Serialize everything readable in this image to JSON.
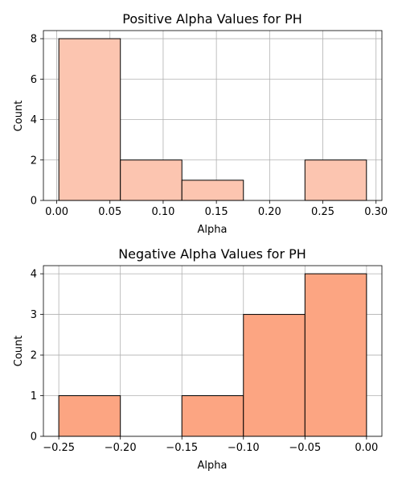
{
  "chart_data": [
    {
      "type": "bar",
      "title": "Positive Alpha Values for PH",
      "xlabel": "Alpha",
      "ylabel": "Count",
      "bins": [
        {
          "start": 0.002,
          "end": 0.0598,
          "count": 8
        },
        {
          "start": 0.0598,
          "end": 0.1176,
          "count": 2
        },
        {
          "start": 0.1176,
          "end": 0.1754,
          "count": 1
        },
        {
          "start": 0.1754,
          "end": 0.2332,
          "count": 0
        },
        {
          "start": 0.2332,
          "end": 0.291,
          "count": 2
        }
      ],
      "xlim": [
        -0.0125,
        0.3055
      ],
      "ylim": [
        0,
        8.4
      ],
      "xticks": [
        0.0,
        0.05,
        0.1,
        0.15,
        0.2,
        0.25,
        0.3
      ],
      "xtick_labels": [
        "0.00",
        "0.05",
        "0.10",
        "0.15",
        "0.20",
        "0.25",
        "0.30"
      ],
      "yticks": [
        0,
        2,
        4,
        6,
        8
      ],
      "ytick_labels": [
        "0",
        "2",
        "4",
        "6",
        "8"
      ],
      "grid": true,
      "bar_color": "#fcc5b0",
      "edge_color": "#000000"
    },
    {
      "type": "bar",
      "title": "Negative Alpha Values for PH",
      "xlabel": "Alpha",
      "ylabel": "Count",
      "bins": [
        {
          "start": -0.25,
          "end": -0.2,
          "count": 1
        },
        {
          "start": -0.2,
          "end": -0.15,
          "count": 0
        },
        {
          "start": -0.15,
          "end": -0.1,
          "count": 1
        },
        {
          "start": -0.1,
          "end": -0.05,
          "count": 3
        },
        {
          "start": -0.05,
          "end": 0.0,
          "count": 4
        }
      ],
      "xlim": [
        -0.2625,
        0.0125
      ],
      "ylim": [
        0,
        4.2
      ],
      "xticks": [
        -0.25,
        -0.2,
        -0.15,
        -0.1,
        -0.05,
        0.0
      ],
      "xtick_labels": [
        "−0.25",
        "−0.20",
        "−0.15",
        "−0.10",
        "−0.05",
        "0.00"
      ],
      "yticks": [
        0,
        1,
        2,
        3,
        4
      ],
      "ytick_labels": [
        "0",
        "1",
        "2",
        "3",
        "4"
      ],
      "grid": true,
      "bar_color": "#fca582",
      "edge_color": "#000000"
    }
  ]
}
